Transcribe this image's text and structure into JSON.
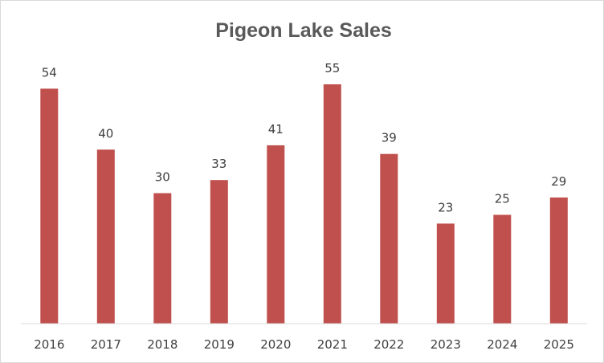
{
  "chart_data": {
    "type": "bar",
    "title": "Pigeon Lake Sales",
    "xlabel": "",
    "ylabel": "",
    "categories": [
      "2016",
      "2017",
      "2018",
      "2019",
      "2020",
      "2021",
      "2022",
      "2023",
      "2024",
      "2025"
    ],
    "values": [
      54,
      40,
      30,
      33,
      41,
      55,
      39,
      23,
      25,
      29
    ],
    "ylim": [
      0,
      55
    ],
    "bar_color": "#c0504d",
    "data_labels": true,
    "grid": false,
    "legend": "none"
  }
}
